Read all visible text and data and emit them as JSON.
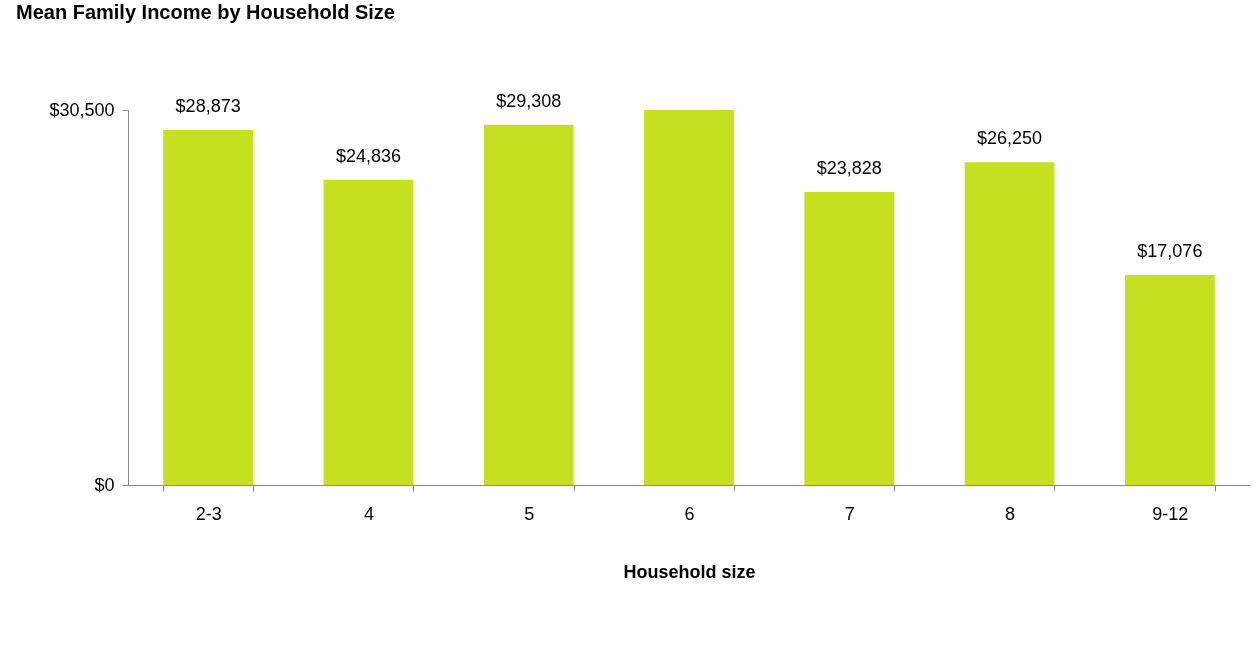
{
  "chart_data": {
    "type": "bar",
    "title": "Mean Family Income by Household Size",
    "xlabel": "Household size",
    "categories": [
      "2-3",
      "4",
      "5",
      "6",
      "7",
      "8",
      "9-12"
    ],
    "values": [
      28873,
      24836,
      29308,
      30500,
      23828,
      26250,
      17076
    ],
    "value_labels": [
      "$28,873",
      "$24,836",
      "$29,308",
      null,
      "$23,828",
      "$26,250",
      "$17,076"
    ],
    "color": "#c5e01f",
    "ylim": [
      0,
      30500
    ],
    "yticks": [
      {
        "value": 0,
        "label": "$0"
      },
      {
        "value": 30500,
        "label": "$30,500"
      }
    ],
    "grid": false
  }
}
